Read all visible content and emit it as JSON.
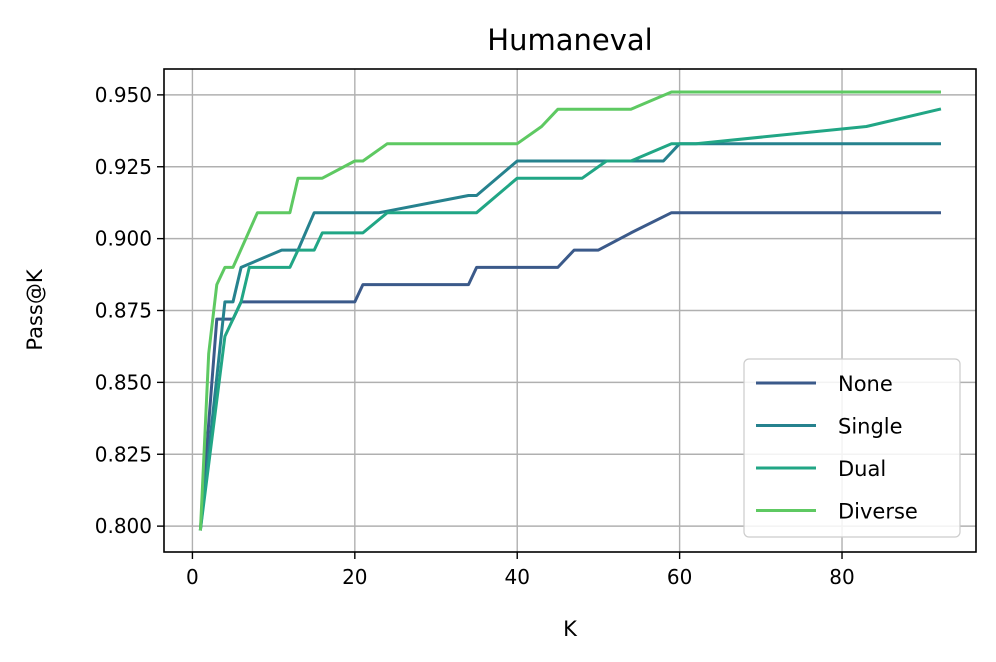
{
  "chart_data": {
    "type": "line",
    "title": "Humaneval",
    "xlabel": "K",
    "ylabel": "Pass@K",
    "xlim": [
      -3.5,
      96.5
    ],
    "ylim": [
      0.791,
      0.959
    ],
    "xticks": [
      0,
      20,
      40,
      60,
      80
    ],
    "xtick_labels": [
      "0",
      "20",
      "40",
      "60",
      "80"
    ],
    "yticks": [
      0.8,
      0.825,
      0.85,
      0.875,
      0.9,
      0.925,
      0.95
    ],
    "ytick_labels": [
      "0.800",
      "0.825",
      "0.850",
      "0.875",
      "0.900",
      "0.925",
      "0.950"
    ],
    "grid": true,
    "legend_position": "lower-right",
    "series": [
      {
        "name": "None",
        "color": "#3b5a8a",
        "points": [
          [
            1,
            0.799
          ],
          [
            3,
            0.872
          ],
          [
            5,
            0.872
          ],
          [
            6,
            0.878
          ],
          [
            20,
            0.878
          ],
          [
            21,
            0.884
          ],
          [
            34,
            0.884
          ],
          [
            35,
            0.89
          ],
          [
            45,
            0.89
          ],
          [
            47,
            0.896
          ],
          [
            50,
            0.896
          ],
          [
            54,
            0.902
          ],
          [
            59,
            0.909
          ],
          [
            92,
            0.909
          ]
        ]
      },
      {
        "name": "Single",
        "color": "#26828e",
        "points": [
          [
            1,
            0.799
          ],
          [
            4,
            0.878
          ],
          [
            5,
            0.878
          ],
          [
            6,
            0.89
          ],
          [
            11,
            0.896
          ],
          [
            13,
            0.896
          ],
          [
            15,
            0.909
          ],
          [
            23,
            0.909
          ],
          [
            34,
            0.915
          ],
          [
            35,
            0.915
          ],
          [
            40,
            0.927
          ],
          [
            48,
            0.927
          ],
          [
            58,
            0.927
          ],
          [
            60,
            0.933
          ],
          [
            92,
            0.933
          ]
        ]
      },
      {
        "name": "Dual",
        "color": "#21a685",
        "points": [
          [
            1,
            0.799
          ],
          [
            4,
            0.866
          ],
          [
            6,
            0.878
          ],
          [
            7,
            0.89
          ],
          [
            12,
            0.89
          ],
          [
            13,
            0.896
          ],
          [
            15,
            0.896
          ],
          [
            16,
            0.902
          ],
          [
            21,
            0.902
          ],
          [
            24,
            0.909
          ],
          [
            35,
            0.909
          ],
          [
            40,
            0.921
          ],
          [
            48,
            0.921
          ],
          [
            51,
            0.927
          ],
          [
            54,
            0.927
          ],
          [
            59,
            0.933
          ],
          [
            62,
            0.933
          ],
          [
            83,
            0.939
          ],
          [
            92,
            0.945
          ]
        ]
      },
      {
        "name": "Diverse",
        "color": "#5ec962",
        "points": [
          [
            1,
            0.799
          ],
          [
            2,
            0.86
          ],
          [
            3,
            0.884
          ],
          [
            4,
            0.89
          ],
          [
            5,
            0.89
          ],
          [
            8,
            0.909
          ],
          [
            12,
            0.909
          ],
          [
            13,
            0.921
          ],
          [
            16,
            0.921
          ],
          [
            20,
            0.927
          ],
          [
            21,
            0.927
          ],
          [
            24,
            0.933
          ],
          [
            40,
            0.933
          ],
          [
            43,
            0.939
          ],
          [
            45,
            0.945
          ],
          [
            54,
            0.945
          ],
          [
            59,
            0.951
          ],
          [
            92,
            0.951
          ]
        ]
      }
    ]
  }
}
